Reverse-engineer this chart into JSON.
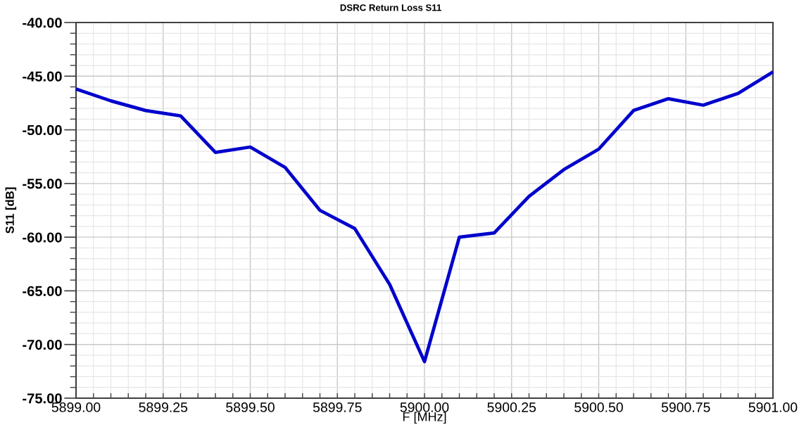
{
  "chart_data": {
    "type": "line",
    "title": "DSRC Return Loss S11",
    "xlabel": "F [MHz]",
    "ylabel": "S11 [dB]",
    "x": [
      5899.0,
      5899.1,
      5899.2,
      5899.3,
      5899.4,
      5899.5,
      5899.6,
      5899.7,
      5899.8,
      5899.9,
      5900.0,
      5900.1,
      5900.2,
      5900.3,
      5900.4,
      5900.5,
      5900.6,
      5900.7,
      5900.8,
      5900.9,
      5901.0
    ],
    "series": [
      {
        "color": "#0000cc",
        "values": [
          -46.2,
          -47.3,
          -48.2,
          -48.7,
          -52.1,
          -51.6,
          -53.5,
          -57.5,
          -59.2,
          -64.4,
          -71.6,
          -60.0,
          -59.6,
          -56.2,
          -53.7,
          -51.8,
          -48.2,
          -47.1,
          -47.7,
          -46.6,
          -44.6
        ]
      }
    ],
    "xlim": [
      5899,
      5901
    ],
    "ylim": [
      -75,
      -40
    ],
    "xticks": [
      {
        "value": 5899,
        "label": "5899.00"
      },
      {
        "value": 5899.05,
        "label": null
      },
      {
        "value": 5899.1,
        "label": null
      },
      {
        "value": 5899.15,
        "label": null
      },
      {
        "value": 5899.2,
        "label": null
      },
      {
        "value": 5899.25,
        "label": "5899.25"
      },
      {
        "value": 5899.3,
        "label": null
      },
      {
        "value": 5899.35,
        "label": null
      },
      {
        "value": 5899.4,
        "label": null
      },
      {
        "value": 5899.45,
        "label": null
      },
      {
        "value": 5899.5,
        "label": "5899.50"
      },
      {
        "value": 5899.55,
        "label": null
      },
      {
        "value": 5899.6,
        "label": null
      },
      {
        "value": 5899.65,
        "label": null
      },
      {
        "value": 5899.7,
        "label": null
      },
      {
        "value": 5899.75,
        "label": "5899.75"
      },
      {
        "value": 5899.8,
        "label": null
      },
      {
        "value": 5899.85,
        "label": null
      },
      {
        "value": 5899.9,
        "label": null
      },
      {
        "value": 5899.95,
        "label": null
      },
      {
        "value": 5900,
        "label": "5900.00"
      },
      {
        "value": 5900.05,
        "label": null
      },
      {
        "value": 5900.1,
        "label": null
      },
      {
        "value": 5900.15,
        "label": null
      },
      {
        "value": 5900.2,
        "label": null
      },
      {
        "value": 5900.25,
        "label": "5900.25"
      },
      {
        "value": 5900.3,
        "label": null
      },
      {
        "value": 5900.35,
        "label": null
      },
      {
        "value": 5900.4,
        "label": null
      },
      {
        "value": 5900.45,
        "label": null
      },
      {
        "value": 5900.5,
        "label": "5900.50"
      },
      {
        "value": 5900.55,
        "label": null
      },
      {
        "value": 5900.6,
        "label": null
      },
      {
        "value": 5900.65,
        "label": null
      },
      {
        "value": 5900.7,
        "label": null
      },
      {
        "value": 5900.75,
        "label": "5900.75"
      },
      {
        "value": 5900.8,
        "label": null
      },
      {
        "value": 5900.85,
        "label": null
      },
      {
        "value": 5900.9,
        "label": null
      },
      {
        "value": 5900.95,
        "label": null
      },
      {
        "value": 5901,
        "label": "5901.00"
      }
    ],
    "yticks": [
      {
        "value": -75,
        "label": "-75.00"
      },
      {
        "value": -74,
        "label": null
      },
      {
        "value": -73,
        "label": null
      },
      {
        "value": -72,
        "label": null
      },
      {
        "value": -71,
        "label": null
      },
      {
        "value": -70,
        "label": "-70.00"
      },
      {
        "value": -69,
        "label": null
      },
      {
        "value": -68,
        "label": null
      },
      {
        "value": -67,
        "label": null
      },
      {
        "value": -66,
        "label": null
      },
      {
        "value": -65,
        "label": "-65.00"
      },
      {
        "value": -64,
        "label": null
      },
      {
        "value": -63,
        "label": null
      },
      {
        "value": -62,
        "label": null
      },
      {
        "value": -61,
        "label": null
      },
      {
        "value": -60,
        "label": "-60.00"
      },
      {
        "value": -59,
        "label": null
      },
      {
        "value": -58,
        "label": null
      },
      {
        "value": -57,
        "label": null
      },
      {
        "value": -56,
        "label": null
      },
      {
        "value": -55,
        "label": "-55.00"
      },
      {
        "value": -54,
        "label": null
      },
      {
        "value": -53,
        "label": null
      },
      {
        "value": -52,
        "label": null
      },
      {
        "value": -51,
        "label": null
      },
      {
        "value": -50,
        "label": "-50.00"
      },
      {
        "value": -49,
        "label": null
      },
      {
        "value": -48,
        "label": null
      },
      {
        "value": -47,
        "label": null
      },
      {
        "value": -46,
        "label": null
      },
      {
        "value": -45,
        "label": "-45.00"
      },
      {
        "value": -44,
        "label": null
      },
      {
        "value": -43,
        "label": null
      },
      {
        "value": -42,
        "label": null
      },
      {
        "value": -41,
        "label": null
      },
      {
        "value": -40,
        "label": "-40.00"
      }
    ],
    "grid": true,
    "line_style": "solid"
  }
}
